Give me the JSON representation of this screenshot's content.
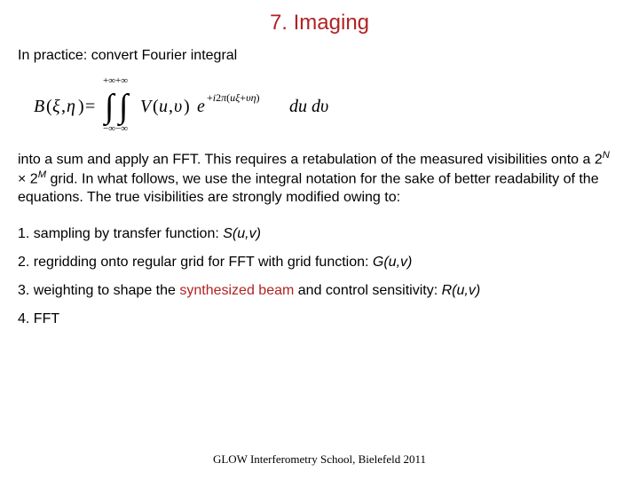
{
  "title": {
    "text": "7. Imaging",
    "color": "#b22222",
    "fontsize": 24
  },
  "intro": "In practice: convert Fourier integral",
  "formula": {
    "text": "B(ξ,η) = ∬_{−∞}^{+∞} V(u,υ) e^{+i2π(uξ+υη)} du dυ",
    "font_family": "Times New Roman, serif",
    "font_style": "italic",
    "color": "#000000"
  },
  "body": {
    "pre": "into a sum and apply an FFT. This requires a retabulation of the measured visibilities onto a 2",
    "expN": "N",
    "mid": " × 2",
    "expM": "M",
    "post": " grid. In what follows, we use the integral notation for the sake of better readability of the equations. The true visibilities are strongly modified owing to:"
  },
  "items": [
    {
      "pre": "1. sampling by transfer function: ",
      "fn": "S(u,v)",
      "hl": null
    },
    {
      "pre": "2. regridding onto regular grid for FFT with grid function: ",
      "fn": "G(u,v)",
      "hl": null
    },
    {
      "pre": "3. weighting to shape the ",
      "hl": "synthesized beam",
      "post": " and control sensitivity: ",
      "fn": "R(u,v)"
    },
    {
      "pre": "4. FFT",
      "fn": "",
      "hl": null
    }
  ],
  "highlight_color": "#b22222",
  "footer": "GLOW Interferometry School, Bielefeld 2011",
  "colors": {
    "background": "#ffffff",
    "text": "#000000"
  }
}
